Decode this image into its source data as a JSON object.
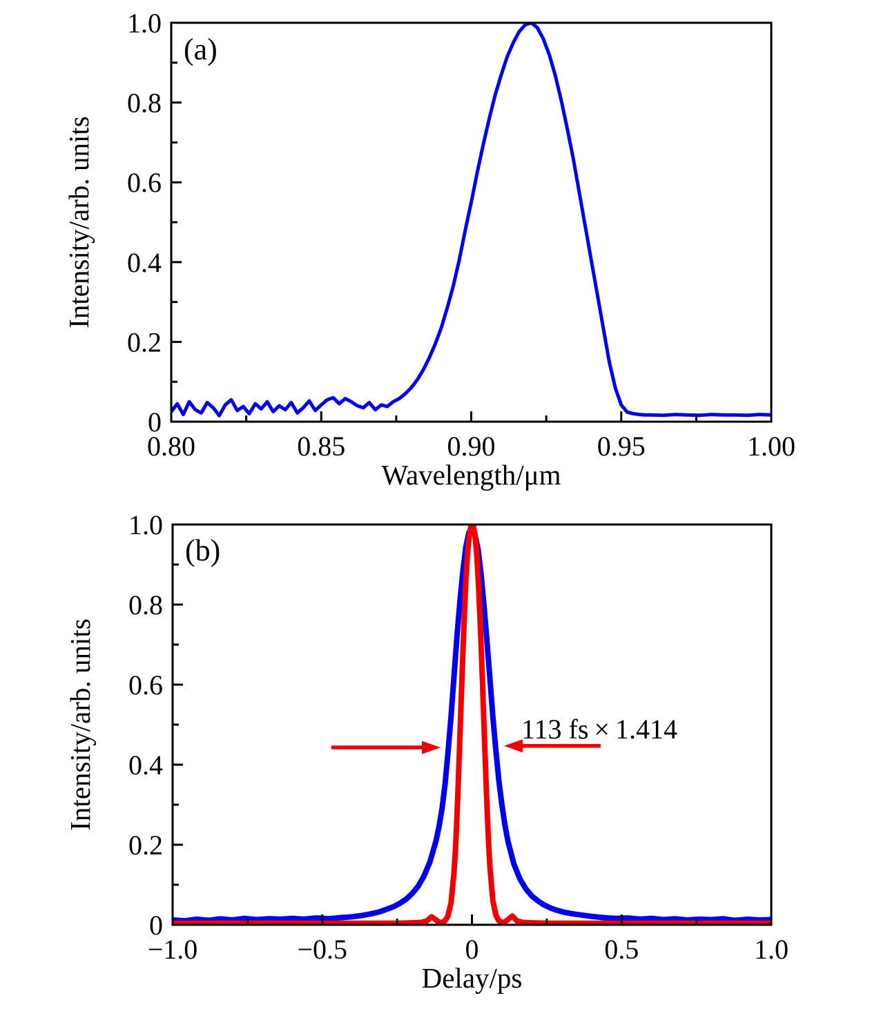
{
  "figure": {
    "background": "#ffffff",
    "axis_color": "#000000",
    "frame_stroke_width": 3
  },
  "chart_data": [
    {
      "id": "panel-a",
      "type": "line",
      "panel_label": "(a)",
      "xlabel": "Wavelength/μm",
      "ylabel": "Intensity/arb. units",
      "xlim": [
        0.8,
        1.0
      ],
      "ylim": [
        0,
        1.0
      ],
      "grid": false,
      "legend_position": "none",
      "x_major_ticks": [
        {
          "v": 0.8,
          "label": "0.80"
        },
        {
          "v": 0.85,
          "label": "0.85"
        },
        {
          "v": 0.9,
          "label": "0.90"
        },
        {
          "v": 0.95,
          "label": "0.95"
        },
        {
          "v": 1.0,
          "label": "1.00"
        }
      ],
      "x_minor_ticks": [
        0.825,
        0.875,
        0.925,
        0.975
      ],
      "y_major_ticks": [
        {
          "v": 0.0,
          "label": "0"
        },
        {
          "v": 0.2,
          "label": "0.2"
        },
        {
          "v": 0.4,
          "label": "0.4"
        },
        {
          "v": 0.6,
          "label": "0.6"
        },
        {
          "v": 0.8,
          "label": "0.8"
        },
        {
          "v": 1.0,
          "label": "1.0"
        }
      ],
      "y_minor_ticks": [
        0.1,
        0.3,
        0.5,
        0.7,
        0.9
      ],
      "series": [
        {
          "name": "spectrum",
          "color": "#0000ee",
          "width": 5,
          "x": [
            0.8,
            0.802,
            0.804,
            0.806,
            0.808,
            0.81,
            0.812,
            0.814,
            0.816,
            0.818,
            0.82,
            0.822,
            0.824,
            0.826,
            0.828,
            0.83,
            0.832,
            0.834,
            0.836,
            0.838,
            0.84,
            0.842,
            0.844,
            0.846,
            0.848,
            0.85,
            0.852,
            0.854,
            0.856,
            0.858,
            0.86,
            0.862,
            0.864,
            0.866,
            0.868,
            0.87,
            0.872,
            0.874,
            0.876,
            0.878,
            0.88,
            0.882,
            0.884,
            0.886,
            0.888,
            0.89,
            0.892,
            0.894,
            0.896,
            0.898,
            0.9,
            0.902,
            0.904,
            0.906,
            0.908,
            0.91,
            0.912,
            0.914,
            0.916,
            0.918,
            0.92,
            0.922,
            0.924,
            0.926,
            0.928,
            0.93,
            0.932,
            0.934,
            0.936,
            0.938,
            0.94,
            0.942,
            0.944,
            0.946,
            0.948,
            0.95,
            0.952,
            0.954,
            0.956,
            0.958,
            0.96,
            0.964,
            0.968,
            0.972,
            0.976,
            0.98,
            0.984,
            0.988,
            0.992,
            0.996,
            1.0
          ],
          "y": [
            0.025,
            0.045,
            0.018,
            0.05,
            0.03,
            0.022,
            0.048,
            0.035,
            0.015,
            0.042,
            0.055,
            0.028,
            0.038,
            0.02,
            0.045,
            0.032,
            0.05,
            0.025,
            0.04,
            0.03,
            0.048,
            0.022,
            0.035,
            0.052,
            0.028,
            0.042,
            0.055,
            0.06,
            0.045,
            0.058,
            0.05,
            0.04,
            0.035,
            0.048,
            0.03,
            0.042,
            0.038,
            0.05,
            0.058,
            0.07,
            0.085,
            0.105,
            0.13,
            0.16,
            0.195,
            0.235,
            0.285,
            0.34,
            0.405,
            0.48,
            0.55,
            0.625,
            0.695,
            0.76,
            0.82,
            0.87,
            0.915,
            0.95,
            0.978,
            0.995,
            1.0,
            0.988,
            0.96,
            0.92,
            0.868,
            0.805,
            0.735,
            0.66,
            0.575,
            0.49,
            0.405,
            0.32,
            0.235,
            0.15,
            0.085,
            0.042,
            0.024,
            0.02,
            0.018,
            0.017,
            0.017,
            0.016,
            0.018,
            0.017,
            0.016,
            0.018,
            0.017,
            0.017,
            0.016,
            0.018,
            0.017
          ]
        }
      ]
    },
    {
      "id": "panel-b",
      "type": "line",
      "panel_label": "(b)",
      "xlabel": "Delay/ps",
      "ylabel": "Intensity/arb. units",
      "xlim": [
        -1.0,
        1.0
      ],
      "ylim": [
        0,
        1.0
      ],
      "grid": false,
      "legend_position": "none",
      "x_major_ticks": [
        {
          "v": -1.0,
          "label": "−1.0"
        },
        {
          "v": -0.5,
          "label": "−0.5"
        },
        {
          "v": 0.0,
          "label": "0"
        },
        {
          "v": 0.5,
          "label": "0.5"
        },
        {
          "v": 1.0,
          "label": "1.0"
        }
      ],
      "x_minor_ticks": [
        -0.75,
        -0.25,
        0.25,
        0.75
      ],
      "y_major_ticks": [
        {
          "v": 0.0,
          "label": "0"
        },
        {
          "v": 0.2,
          "label": "0.2"
        },
        {
          "v": 0.4,
          "label": "0.4"
        },
        {
          "v": 0.6,
          "label": "0.6"
        },
        {
          "v": 0.8,
          "label": "0.8"
        },
        {
          "v": 1.0,
          "label": "1.0"
        }
      ],
      "y_minor_ticks": [
        0.1,
        0.3,
        0.5,
        0.7,
        0.9
      ],
      "series": [
        {
          "name": "autocorrelation-trace",
          "color": "#0000ee",
          "width": 8,
          "x": [
            -1.0,
            -0.96,
            -0.92,
            -0.88,
            -0.84,
            -0.8,
            -0.76,
            -0.72,
            -0.68,
            -0.64,
            -0.6,
            -0.56,
            -0.52,
            -0.48,
            -0.44,
            -0.4,
            -0.37,
            -0.34,
            -0.31,
            -0.28,
            -0.26,
            -0.24,
            -0.22,
            -0.2,
            -0.18,
            -0.16,
            -0.14,
            -0.12,
            -0.11,
            -0.1,
            -0.09,
            -0.08,
            -0.07,
            -0.06,
            -0.05,
            -0.04,
            -0.03,
            -0.02,
            -0.01,
            0.0,
            0.01,
            0.02,
            0.03,
            0.04,
            0.05,
            0.06,
            0.07,
            0.08,
            0.09,
            0.1,
            0.11,
            0.12,
            0.14,
            0.16,
            0.18,
            0.2,
            0.22,
            0.24,
            0.26,
            0.28,
            0.31,
            0.34,
            0.37,
            0.4,
            0.44,
            0.48,
            0.52,
            0.56,
            0.6,
            0.64,
            0.68,
            0.72,
            0.76,
            0.8,
            0.84,
            0.88,
            0.92,
            0.96,
            1.0
          ],
          "y": [
            0.012,
            0.01,
            0.014,
            0.011,
            0.015,
            0.012,
            0.016,
            0.013,
            0.015,
            0.014,
            0.016,
            0.014,
            0.017,
            0.015,
            0.018,
            0.02,
            0.023,
            0.027,
            0.032,
            0.04,
            0.046,
            0.054,
            0.064,
            0.078,
            0.096,
            0.122,
            0.158,
            0.21,
            0.245,
            0.29,
            0.35,
            0.43,
            0.52,
            0.62,
            0.72,
            0.81,
            0.885,
            0.945,
            0.98,
            0.99,
            0.975,
            0.94,
            0.88,
            0.8,
            0.71,
            0.615,
            0.52,
            0.435,
            0.36,
            0.3,
            0.25,
            0.21,
            0.152,
            0.115,
            0.09,
            0.072,
            0.06,
            0.05,
            0.043,
            0.037,
            0.031,
            0.027,
            0.024,
            0.021,
            0.018,
            0.016,
            0.017,
            0.014,
            0.016,
            0.013,
            0.015,
            0.012,
            0.014,
            0.013,
            0.015,
            0.011,
            0.014,
            0.012,
            0.013
          ]
        },
        {
          "name": "pulse-fit",
          "color": "#f20000",
          "width": 8,
          "x": [
            -1.0,
            -0.9,
            -0.8,
            -0.7,
            -0.6,
            -0.5,
            -0.4,
            -0.3,
            -0.25,
            -0.2,
            -0.17,
            -0.15,
            -0.135,
            -0.12,
            -0.11,
            -0.1,
            -0.09,
            -0.08,
            -0.07,
            -0.06,
            -0.055,
            -0.05,
            -0.045,
            -0.04,
            -0.035,
            -0.03,
            -0.025,
            -0.02,
            -0.015,
            -0.01,
            -0.005,
            0.0,
            0.005,
            0.01,
            0.015,
            0.02,
            0.025,
            0.03,
            0.035,
            0.04,
            0.045,
            0.05,
            0.055,
            0.06,
            0.07,
            0.08,
            0.09,
            0.1,
            0.11,
            0.12,
            0.135,
            0.15,
            0.17,
            0.2,
            0.25,
            0.3,
            0.4,
            0.5,
            0.6,
            0.7,
            0.8,
            0.9,
            1.0
          ],
          "y": [
            0.004,
            0.004,
            0.004,
            0.004,
            0.004,
            0.004,
            0.004,
            0.004,
            0.004,
            0.005,
            0.006,
            0.01,
            0.02,
            0.012,
            0.006,
            0.006,
            0.01,
            0.022,
            0.055,
            0.13,
            0.19,
            0.27,
            0.37,
            0.475,
            0.58,
            0.685,
            0.78,
            0.865,
            0.925,
            0.965,
            0.99,
            1.0,
            0.995,
            0.975,
            0.935,
            0.875,
            0.8,
            0.71,
            0.61,
            0.505,
            0.4,
            0.3,
            0.215,
            0.145,
            0.06,
            0.024,
            0.01,
            0.006,
            0.007,
            0.013,
            0.022,
            0.01,
            0.006,
            0.005,
            0.004,
            0.004,
            0.004,
            0.004,
            0.004,
            0.004,
            0.004,
            0.004,
            0.004
          ]
        }
      ],
      "annotation": {
        "label": "113 fs × 1.414",
        "label_color": "#2222cc",
        "label_x": 0.165,
        "label_y": 0.4655,
        "arrow_color": "#f20000",
        "arrows": [
          {
            "x_from": -0.47,
            "x_to": -0.105,
            "y": 0.443
          },
          {
            "x_from": 0.43,
            "x_to": 0.107,
            "y": 0.447
          }
        ]
      }
    }
  ]
}
